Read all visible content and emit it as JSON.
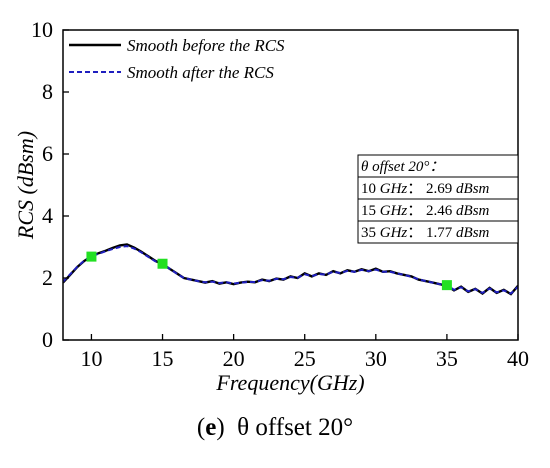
{
  "caption": {
    "tag": "e",
    "text": "θ  offset 20°"
  },
  "chart_data": {
    "type": "line",
    "xlabel": "Frequency(GHz)",
    "ylabel": "RCS (dBsm)",
    "xlim": [
      8,
      40
    ],
    "ylim": [
      0,
      10
    ],
    "xticks": [
      10,
      15,
      20,
      25,
      30,
      35,
      40
    ],
    "yticks": [
      0,
      2,
      4,
      6,
      8,
      10
    ],
    "grid": false,
    "legend_position": "top-left",
    "series": [
      {
        "name": "Smooth before the RCS",
        "color": "#000000",
        "style": "solid",
        "x": [
          8,
          8.5,
          9,
          9.5,
          10,
          10.5,
          11,
          11.5,
          12,
          12.5,
          13,
          13.5,
          14,
          14.5,
          15,
          15.5,
          16,
          16.5,
          17,
          17.5,
          18,
          18.5,
          19,
          19.5,
          20,
          20.5,
          21,
          21.5,
          22,
          22.5,
          23,
          23.5,
          24,
          24.5,
          25,
          25.5,
          26,
          26.5,
          27,
          27.5,
          28,
          28.5,
          29,
          29.5,
          30,
          30.5,
          31,
          31.5,
          32,
          32.5,
          33,
          33.5,
          34,
          34.5,
          35,
          35.5,
          36,
          36.5,
          37,
          37.5,
          38,
          38.5,
          39,
          39.5,
          40
        ],
        "y": [
          1.85,
          2.1,
          2.35,
          2.55,
          2.7,
          2.8,
          2.88,
          2.97,
          3.05,
          3.08,
          2.98,
          2.85,
          2.7,
          2.55,
          2.45,
          2.3,
          2.15,
          2.0,
          1.95,
          1.9,
          1.85,
          1.9,
          1.82,
          1.86,
          1.8,
          1.85,
          1.88,
          1.86,
          1.95,
          1.9,
          1.98,
          1.95,
          2.05,
          2.0,
          2.15,
          2.05,
          2.15,
          2.1,
          2.22,
          2.15,
          2.25,
          2.2,
          2.28,
          2.22,
          2.3,
          2.2,
          2.22,
          2.15,
          2.1,
          2.05,
          1.95,
          1.9,
          1.85,
          1.8,
          1.75,
          1.6,
          1.72,
          1.55,
          1.65,
          1.5,
          1.68,
          1.52,
          1.62,
          1.48,
          1.75
        ]
      },
      {
        "name": "Smooth after the RCS",
        "color": "#1f1fbf",
        "style": "dashed",
        "x": [
          8,
          8.5,
          9,
          9.5,
          10,
          10.5,
          11,
          11.5,
          12,
          12.5,
          13,
          13.5,
          14,
          14.5,
          15,
          15.5,
          16,
          16.5,
          17,
          17.5,
          18,
          18.5,
          19,
          19.5,
          20,
          20.5,
          21,
          21.5,
          22,
          22.5,
          23,
          23.5,
          24,
          24.5,
          25,
          25.5,
          26,
          26.5,
          27,
          27.5,
          28,
          28.5,
          29,
          29.5,
          30,
          30.5,
          31,
          31.5,
          32,
          32.5,
          33,
          33.5,
          34,
          34.5,
          35,
          35.5,
          36,
          36.5,
          37,
          37.5,
          38,
          38.5,
          39,
          39.5,
          40
        ],
        "y": [
          1.88,
          2.12,
          2.36,
          2.56,
          2.7,
          2.78,
          2.86,
          2.94,
          3.0,
          3.03,
          2.95,
          2.83,
          2.68,
          2.54,
          2.46,
          2.3,
          2.14,
          2.0,
          1.95,
          1.9,
          1.86,
          1.88,
          1.84,
          1.86,
          1.82,
          1.85,
          1.87,
          1.87,
          1.93,
          1.91,
          1.97,
          1.96,
          2.03,
          2.01,
          2.12,
          2.06,
          2.13,
          2.11,
          2.2,
          2.16,
          2.23,
          2.2,
          2.26,
          2.22,
          2.27,
          2.2,
          2.2,
          2.15,
          2.1,
          2.04,
          1.96,
          1.9,
          1.85,
          1.8,
          1.77,
          1.62,
          1.7,
          1.57,
          1.64,
          1.52,
          1.66,
          1.54,
          1.6,
          1.5,
          1.72
        ]
      }
    ],
    "markers": [
      {
        "x": 10,
        "y": 2.69,
        "color": "#22e022"
      },
      {
        "x": 15,
        "y": 2.46,
        "color": "#22e022"
      },
      {
        "x": 35,
        "y": 1.77,
        "color": "#22e022"
      }
    ],
    "annotation": {
      "title": "θ offset 20°：",
      "lines": [
        {
          "freq": "10",
          "freq_unit": "GHz",
          "sep": "：",
          "value": "2.69",
          "value_unit": "dBsm"
        },
        {
          "freq": "15",
          "freq_unit": "GHz",
          "sep": "：",
          "value": "2.46",
          "value_unit": "dBsm"
        },
        {
          "freq": "35",
          "freq_unit": "GHz",
          "sep": "：",
          "value": "1.77",
          "value_unit": "dBsm"
        }
      ]
    }
  }
}
